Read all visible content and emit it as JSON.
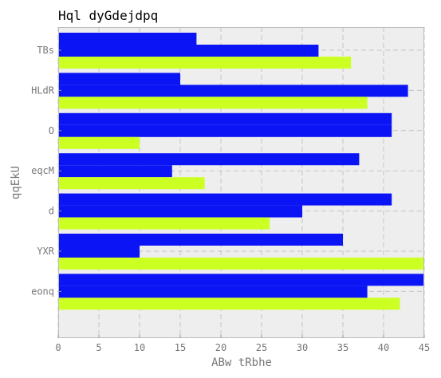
{
  "chart_data": {
    "type": "bar",
    "orientation": "horizontal",
    "title": "Hql  dyGdejdpq",
    "xlabel": "ABw tRbhe",
    "ylabel": "qqEkU",
    "xlim": [
      0,
      45
    ],
    "x_ticks": [
      0,
      5,
      10,
      15,
      20,
      25,
      30,
      35,
      40,
      45
    ],
    "grid": true,
    "categories": [
      "TBs",
      "HLdR",
      "O",
      "eqcM",
      "d",
      "YXR",
      "eonq"
    ],
    "series": [
      {
        "color": "#0a14f5",
        "values": [
          17,
          15,
          41,
          37,
          41,
          35,
          45
        ]
      },
      {
        "color": "#0a14f5",
        "values": [
          32,
          43,
          41,
          14,
          30,
          10,
          38
        ]
      },
      {
        "color": "#ccff22",
        "values": [
          36,
          38,
          10,
          18,
          26,
          45,
          42
        ]
      }
    ]
  }
}
